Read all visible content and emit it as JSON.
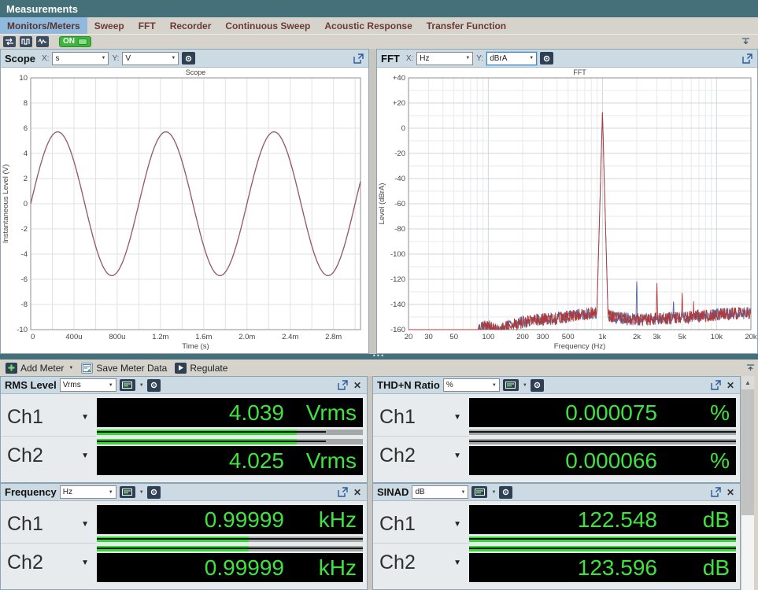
{
  "window": {
    "title": "Measurements"
  },
  "tabs": [
    {
      "label": "Monitors/Meters",
      "selected": true
    },
    {
      "label": "Sweep",
      "selected": false
    },
    {
      "label": "FFT",
      "selected": false
    },
    {
      "label": "Recorder",
      "selected": false
    },
    {
      "label": "Continuous Sweep",
      "selected": false
    },
    {
      "label": "Acoustic Response",
      "selected": false
    },
    {
      "label": "Transfer Function",
      "selected": false
    }
  ],
  "toolbar": {
    "icons": [
      "signal-path-icon",
      "generator-icon",
      "monitor-icon"
    ],
    "on_label": "ON"
  },
  "scope_panel": {
    "title": "Scope",
    "x_label": "X:",
    "x_unit": "s",
    "y_label": "Y:",
    "y_unit": "V"
  },
  "fft_panel": {
    "title": "FFT",
    "x_label": "X:",
    "x_unit": "Hz",
    "y_label": "Y:",
    "y_unit": "dBrA"
  },
  "chart_data": [
    {
      "type": "line",
      "title": "Scope",
      "xlabel": "Time (s)",
      "ylabel": "Instantaneous Level (V)",
      "xlim": [
        0,
        0.00305
      ],
      "ylim": [
        -10,
        10
      ],
      "x_grid_step": 0.0002,
      "y_grid_step": 2,
      "x_ticks": [
        [
          "0",
          0
        ],
        [
          "400u",
          0.0004
        ],
        [
          "800u",
          0.0008
        ],
        [
          "1.2m",
          0.0012
        ],
        [
          "1.6m",
          0.0016
        ],
        [
          "2.0m",
          0.002
        ],
        [
          "2.4m",
          0.0024
        ],
        [
          "2.8m",
          0.0028
        ]
      ],
      "y_ticks": [
        [
          "10",
          10
        ],
        [
          "8",
          8
        ],
        [
          "6",
          6
        ],
        [
          "4",
          4
        ],
        [
          "2",
          2
        ],
        [
          "0",
          0
        ],
        [
          "-2",
          -2
        ],
        [
          "-4",
          -4
        ],
        [
          "-6",
          -6
        ],
        [
          "-8",
          -8
        ],
        [
          "-10",
          -10
        ]
      ],
      "series": [
        {
          "name": "Ch1",
          "waveform": "sine",
          "amplitude_v": 5.712,
          "frequency_hz": 1000,
          "phase_deg": 0,
          "color": "#7878a8"
        },
        {
          "name": "Ch2",
          "waveform": "sine",
          "amplitude_v": 5.712,
          "frequency_hz": 1000,
          "phase_deg": 0,
          "color": "#9a5a64"
        }
      ]
    },
    {
      "type": "line",
      "title": "FFT",
      "xlabel": "Frequency (Hz)",
      "ylabel": "Level (dBrA)",
      "xscale": "log",
      "xlim": [
        20,
        20000
      ],
      "ylim": [
        -160,
        40
      ],
      "y_major_step": 20,
      "y_minor_step": 10,
      "x_ticks": [
        [
          "20",
          20
        ],
        [
          "30",
          30
        ],
        [
          "50",
          50
        ],
        [
          "100",
          100
        ],
        [
          "200",
          200
        ],
        [
          "300",
          300
        ],
        [
          "500",
          500
        ],
        [
          "1k",
          1000
        ],
        [
          "2k",
          2000
        ],
        [
          "3k",
          3000
        ],
        [
          "5k",
          5000
        ],
        [
          "10k",
          10000
        ],
        [
          "20k",
          20000
        ]
      ],
      "y_ticks": [
        [
          "+40",
          40
        ],
        [
          "+20",
          20
        ],
        [
          "0",
          0
        ],
        [
          "-20",
          -20
        ],
        [
          "-40",
          -40
        ],
        [
          "-60",
          -60
        ],
        [
          "-80",
          -80
        ],
        [
          "-100",
          -100
        ],
        [
          "-120",
          -120
        ],
        [
          "-140",
          -140
        ],
        [
          "-160",
          -160
        ]
      ],
      "tone": {
        "frequency_hz": 1000,
        "level_db": 13
      },
      "noise_floor_log10f_db": [
        [
          1.3,
          -172
        ],
        [
          1.85,
          -172
        ],
        [
          1.93,
          -158
        ],
        [
          2.0,
          -156
        ],
        [
          2.08,
          -160
        ],
        [
          2.18,
          -156
        ],
        [
          2.3,
          -153
        ],
        [
          2.45,
          -151
        ],
        [
          2.6,
          -150
        ],
        [
          2.75,
          -148
        ],
        [
          2.9,
          -146
        ],
        [
          3.0,
          -146
        ],
        [
          3.08,
          -149
        ],
        [
          3.3,
          -151
        ],
        [
          3.6,
          -150
        ],
        [
          3.9,
          -148
        ],
        [
          4.15,
          -146
        ],
        [
          4.3,
          -146
        ]
      ],
      "noise_jitter_db": 5,
      "series": [
        {
          "name": "Ch1",
          "color": "#5a6aa0",
          "seed": 7,
          "spurs": [
            {
              "f": 2000,
              "level": -118
            },
            {
              "f": 4200,
              "level": -133
            }
          ]
        },
        {
          "name": "Ch2",
          "color": "#b23838",
          "seed": 13,
          "spurs": [
            {
              "f": 3000,
              "level": -122
            },
            {
              "f": 5000,
              "level": -128
            },
            {
              "f": 6300,
              "level": -137
            }
          ]
        }
      ]
    }
  ],
  "meter_toolbar": {
    "add_meter_label": "Add Meter",
    "save_label": "Save Meter Data",
    "regulate_label": "Regulate"
  },
  "meters": [
    {
      "title": "RMS Level",
      "unit": "Vrms",
      "channels": [
        {
          "name": "Ch1",
          "value": "4.039",
          "unit": "Vrms",
          "fill_pct": 75,
          "line_pct": 86
        },
        {
          "name": "Ch2",
          "value": "4.025",
          "unit": "Vrms",
          "fill_pct": 75,
          "line_pct": 86
        }
      ]
    },
    {
      "title": "THD+N Ratio",
      "unit": "%",
      "channels": [
        {
          "name": "Ch1",
          "value": "0.000075",
          "unit": "%",
          "fill_pct": 0,
          "line_pct": 100
        },
        {
          "name": "Ch2",
          "value": "0.000066",
          "unit": "%",
          "fill_pct": 0,
          "line_pct": 100
        }
      ]
    },
    {
      "title": "Frequency",
      "unit": "Hz",
      "channels": [
        {
          "name": "Ch1",
          "value": "0.99999",
          "unit": "kHz",
          "fill_pct": 57,
          "line_pct": 100
        },
        {
          "name": "Ch2",
          "value": "0.99999",
          "unit": "kHz",
          "fill_pct": 57,
          "line_pct": 100
        }
      ]
    },
    {
      "title": "SINAD",
      "unit": "dB",
      "channels": [
        {
          "name": "Ch1",
          "value": "122.548",
          "unit": "dB",
          "fill_pct": 100,
          "line_pct": 100
        },
        {
          "name": "Ch2",
          "value": "123.596",
          "unit": "dB",
          "fill_pct": 100,
          "line_pct": 100
        }
      ]
    }
  ],
  "colors": {
    "titlebar": "#45707a",
    "tab_selected": "#8fbadd",
    "tab_text": "#6b3a34",
    "panel_header": "#ccdbe3",
    "display_green": "#3fe33f",
    "bar_green": "#35d935",
    "splitter": "#45707a",
    "on_green": "#3fb53f"
  }
}
